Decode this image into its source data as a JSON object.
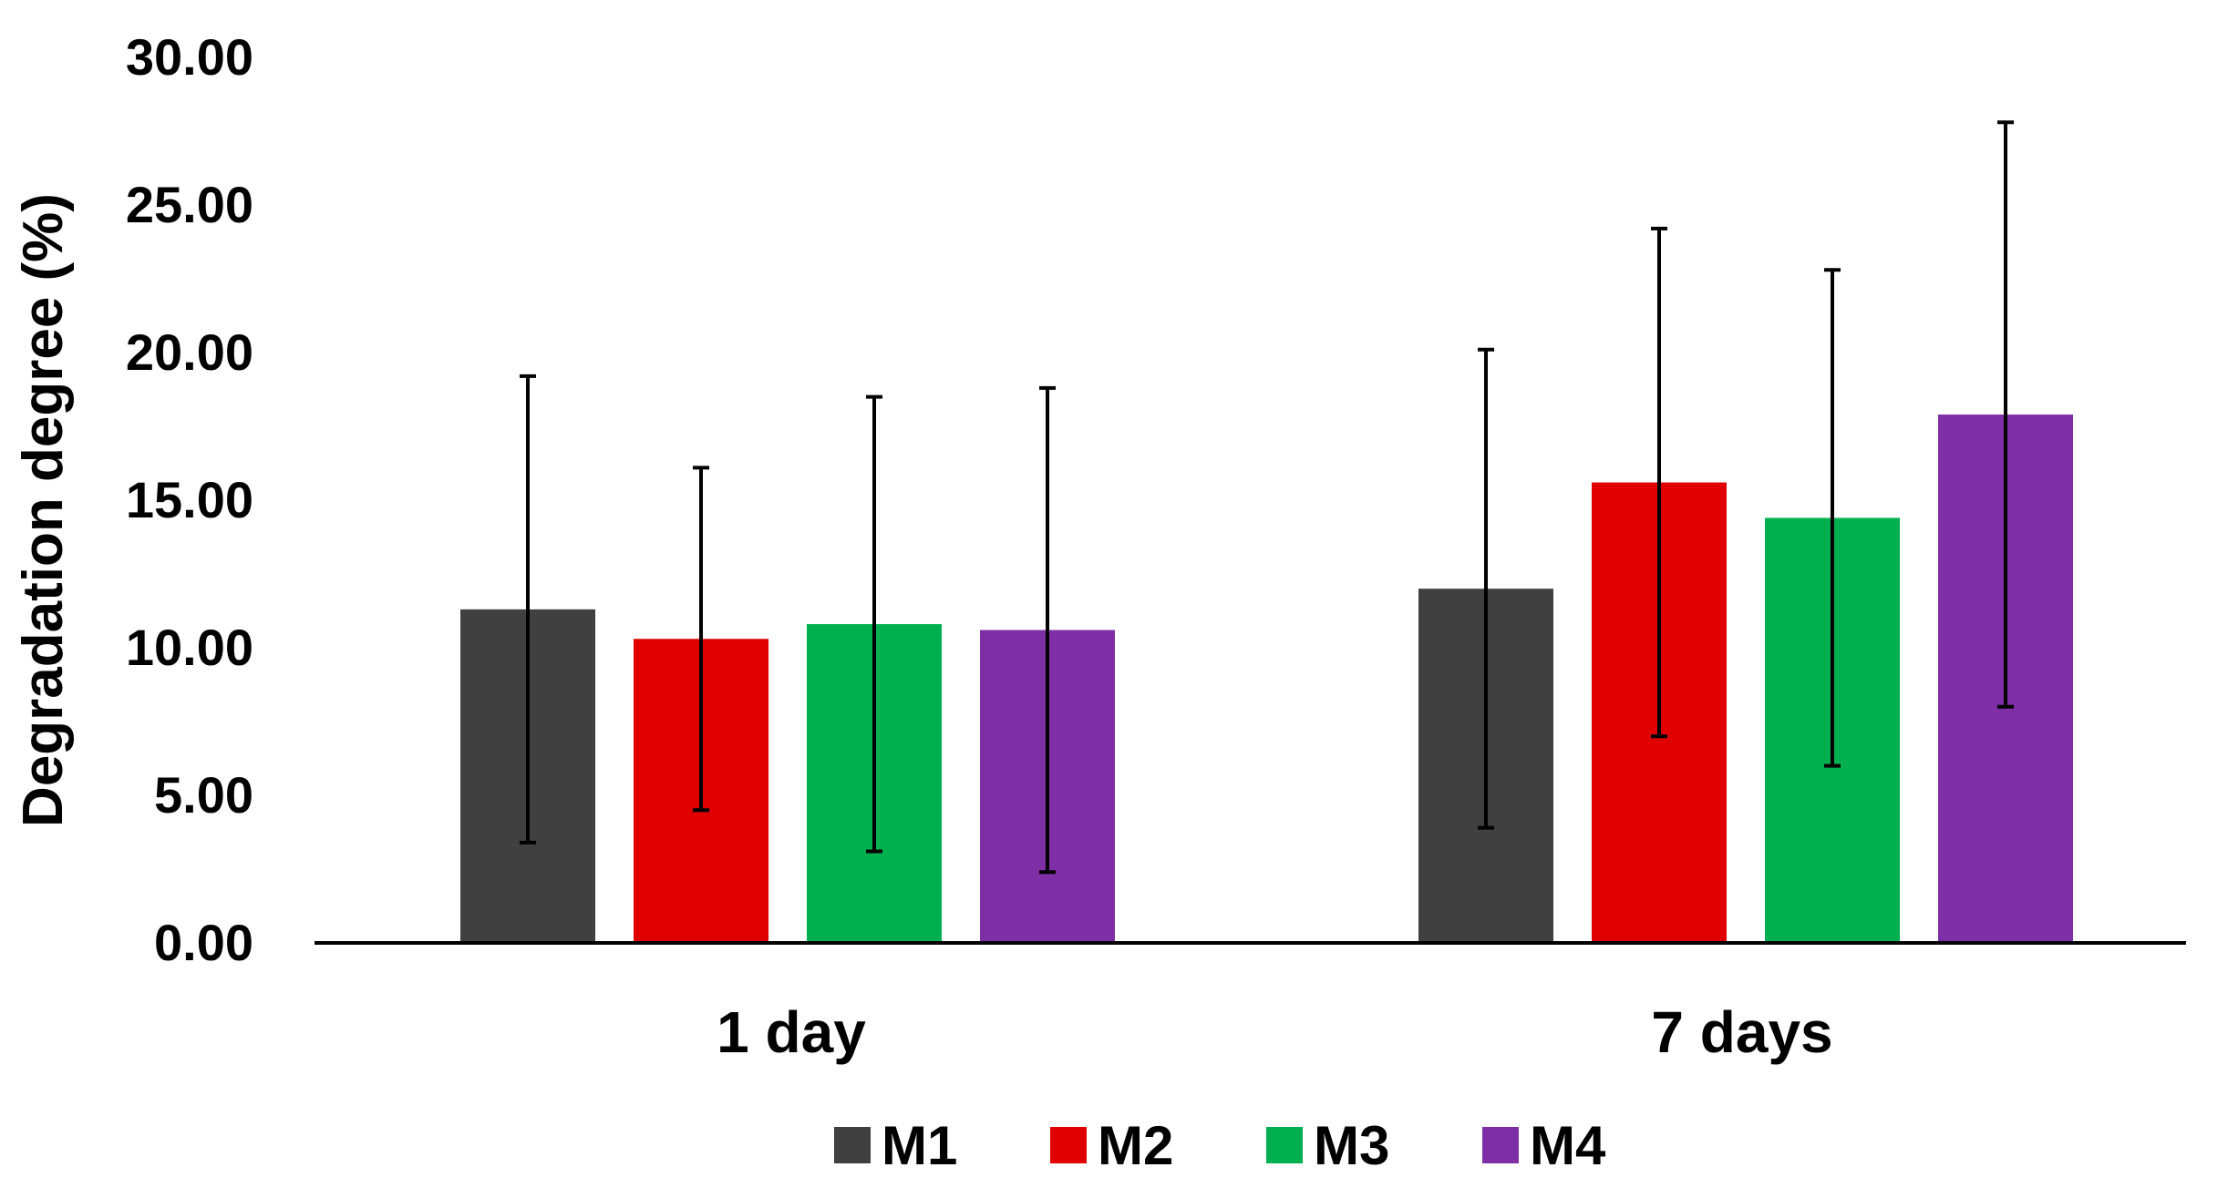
{
  "chart_data": {
    "type": "bar",
    "title": "",
    "xlabel": "",
    "ylabel": "Degradation degree (%)",
    "ylim": [
      0,
      30
    ],
    "yticks": [
      "0.00",
      "5.00",
      "10.00",
      "15.00",
      "20.00",
      "25.00",
      "30.00"
    ],
    "grid": false,
    "legend_position": "bottom",
    "categories": [
      "1 day",
      "7 days"
    ],
    "series": [
      {
        "name": "M1",
        "color": "#404040",
        "values": [
          11.3,
          12.0
        ],
        "errors": [
          7.9,
          8.1
        ]
      },
      {
        "name": "M2",
        "color": "#e00000",
        "values": [
          10.3,
          15.6
        ],
        "errors": [
          5.8,
          8.6
        ]
      },
      {
        "name": "M3",
        "color": "#00b050",
        "values": [
          10.8,
          14.4
        ],
        "errors": [
          7.7,
          8.4
        ]
      },
      {
        "name": "M4",
        "color": "#7f2fa5",
        "values": [
          10.6,
          17.9
        ],
        "errors": [
          8.2,
          9.9
        ]
      }
    ]
  }
}
